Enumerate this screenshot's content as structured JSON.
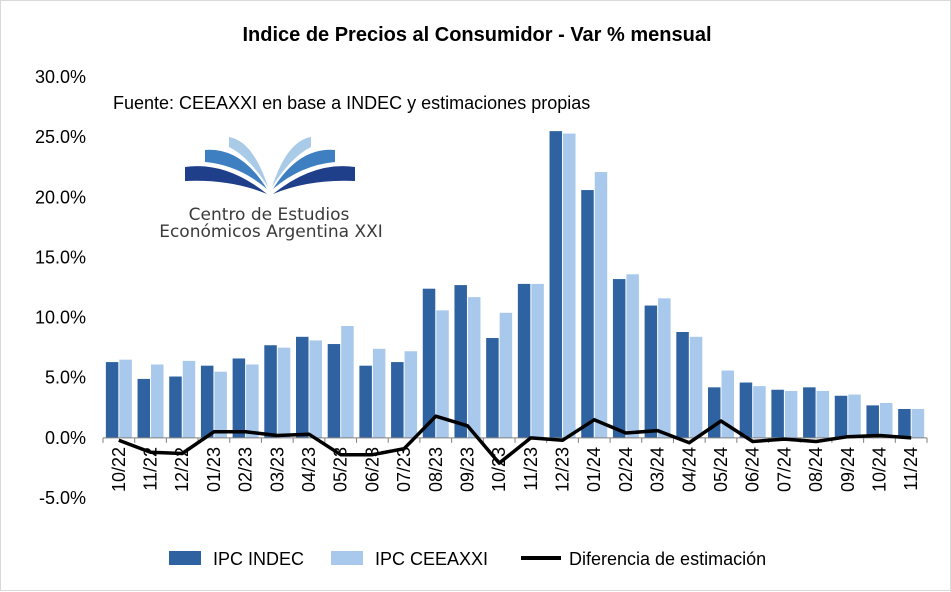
{
  "chart_data": {
    "type": "bar",
    "title": "Indice de Precios al Consumidor  - Var % mensual",
    "annotation": "Fuente: CEEAXXI en base a INDEC y estimaciones propias",
    "logo_text": [
      "Centro de Estudios",
      "Económicos Argentina XXI"
    ],
    "xlabel": "",
    "ylabel": "",
    "ylim": [
      -5,
      30
    ],
    "yticks": [
      -5,
      0,
      5,
      10,
      15,
      20,
      25,
      30
    ],
    "ytick_labels": [
      "-5.0%",
      "0.0%",
      "5.0%",
      "10.0%",
      "15.0%",
      "20.0%",
      "25.0%",
      "30.0%"
    ],
    "grid": false,
    "legend_position": "bottom",
    "categories": [
      "10/22",
      "11/22",
      "12/22",
      "01/23",
      "02/23",
      "03/23",
      "04/23",
      "05/23",
      "06/23",
      "07/23",
      "08/23",
      "09/23",
      "10/23",
      "11/23",
      "12/23",
      "01/24",
      "02/24",
      "03/24",
      "04/24",
      "05/24",
      "06/24",
      "07/24",
      "08/24",
      "09/24",
      "10/24",
      "11/24"
    ],
    "series": [
      {
        "name": "IPC INDEC",
        "type": "bar",
        "color": "#2e62a0",
        "values": [
          6.3,
          4.9,
          5.1,
          6.0,
          6.6,
          7.7,
          8.4,
          7.8,
          6.0,
          6.3,
          12.4,
          12.7,
          8.3,
          12.8,
          25.5,
          20.6,
          13.2,
          11.0,
          8.8,
          4.2,
          4.6,
          4.0,
          4.2,
          3.5,
          2.7,
          2.4
        ]
      },
      {
        "name": "IPC CEEAXXI",
        "type": "bar",
        "color": "#a9c9ec",
        "values": [
          6.5,
          6.1,
          6.4,
          5.5,
          6.1,
          7.5,
          8.1,
          9.3,
          7.4,
          7.2,
          10.6,
          11.7,
          10.4,
          12.8,
          25.3,
          22.1,
          13.6,
          11.6,
          8.4,
          5.6,
          4.3,
          3.9,
          3.9,
          3.6,
          2.9,
          2.4
        ]
      },
      {
        "name": "Diferencia de estimación",
        "type": "line",
        "color": "#000000",
        "values": [
          -0.2,
          -1.2,
          -1.3,
          0.5,
          0.5,
          0.2,
          0.3,
          -1.4,
          -1.4,
          -0.9,
          1.8,
          1.0,
          -2.1,
          0.0,
          -0.2,
          1.5,
          0.4,
          0.6,
          -0.4,
          1.4,
          -0.3,
          -0.1,
          -0.3,
          0.1,
          0.2,
          0.0
        ]
      }
    ]
  }
}
